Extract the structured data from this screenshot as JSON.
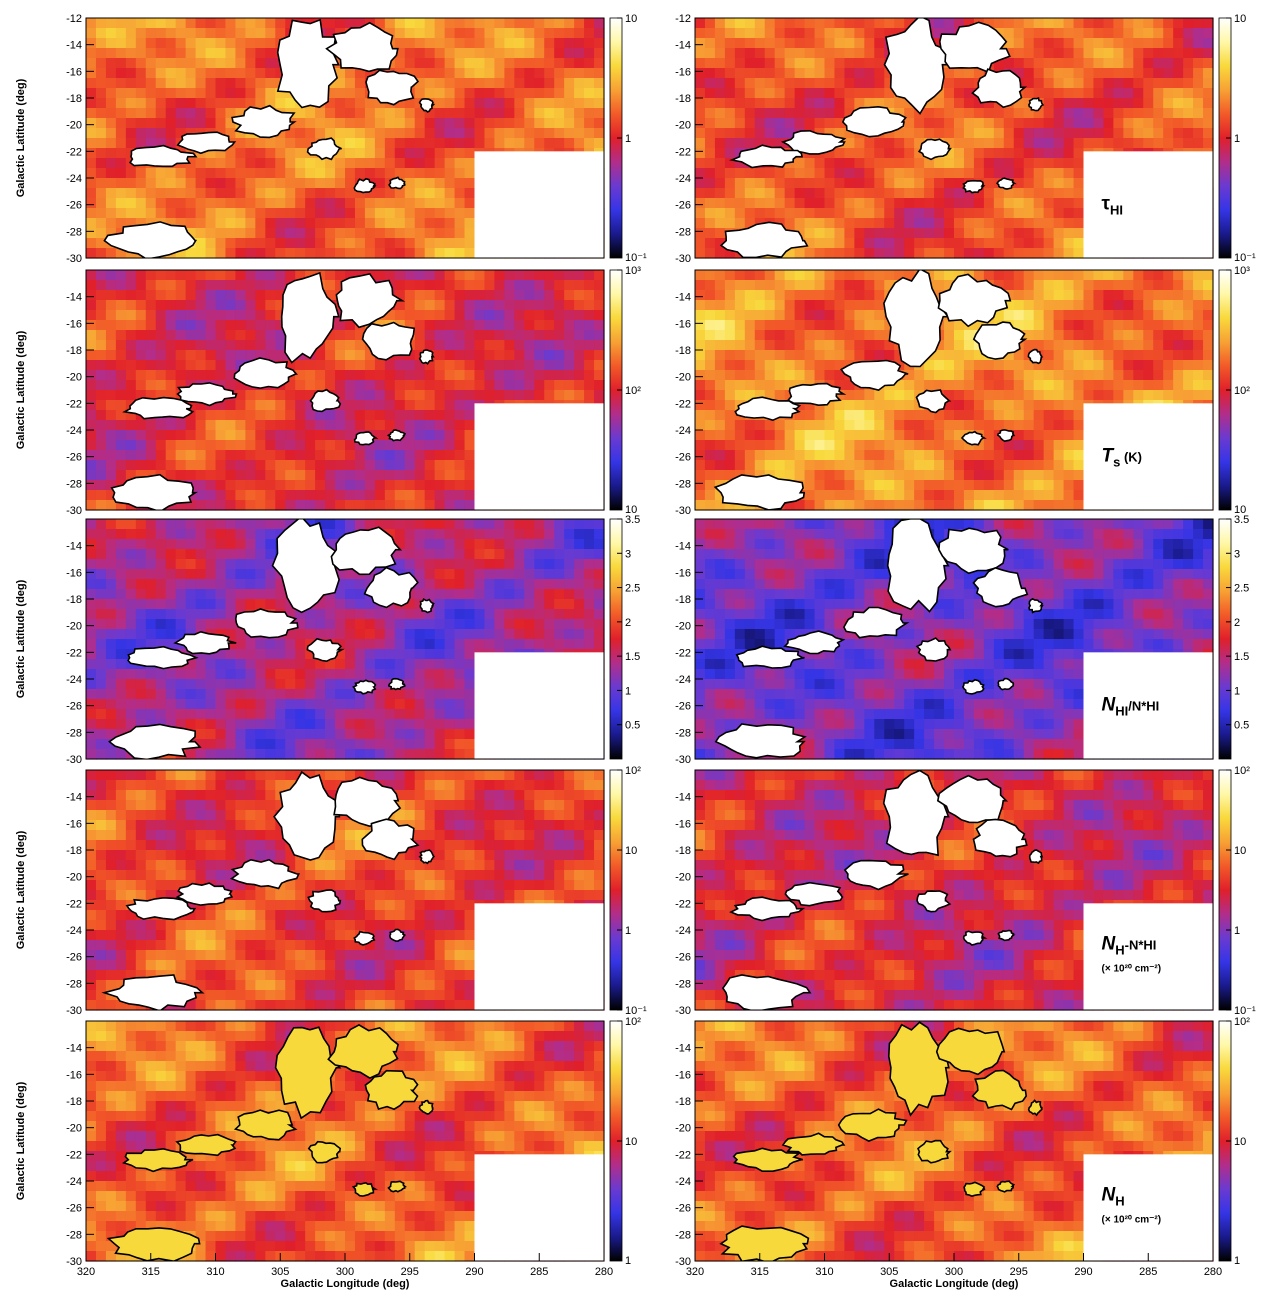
{
  "axes": {
    "xlabel": "Galactic Longitude (deg)",
    "ylabel": "Galactic Latitude (deg)",
    "x_ticks": [
      "320",
      "315",
      "310",
      "305",
      "300",
      "295",
      "290",
      "285",
      "280"
    ],
    "y_ticks": [
      "-12",
      "-14",
      "-16",
      "-18",
      "-20",
      "-22",
      "-24",
      "-26",
      "-28",
      "-30"
    ]
  },
  "chart_data": [
    {
      "type": "heatmap",
      "row": 0,
      "column": "left",
      "xlim": [
        320,
        280
      ],
      "ylim": [
        -30,
        -12
      ],
      "log_scale": true,
      "colorbar": {
        "range": [
          0.02,
          10
        ],
        "ticks": [
          "10",
          "1",
          "10⁻¹"
        ]
      },
      "label": {
        "main": "",
        "sub": "",
        "extra": ""
      }
    },
    {
      "type": "heatmap",
      "row": 0,
      "column": "right",
      "xlim": [
        320,
        280
      ],
      "ylim": [
        -30,
        -12
      ],
      "log_scale": true,
      "colorbar": {
        "range": [
          0.02,
          10
        ],
        "ticks": [
          "10",
          "1",
          "10⁻¹"
        ]
      },
      "label": {
        "main": "τ",
        "sub": "HI",
        "extra": ""
      }
    },
    {
      "type": "heatmap",
      "row": 1,
      "column": "left",
      "xlim": [
        320,
        280
      ],
      "ylim": [
        -30,
        -12
      ],
      "log_scale": true,
      "colorbar": {
        "range": [
          10,
          1000
        ],
        "ticks": [
          "10³",
          "10²",
          "10"
        ]
      },
      "label": {
        "main": "",
        "sub": "",
        "extra": ""
      }
    },
    {
      "type": "heatmap",
      "row": 1,
      "column": "right",
      "xlim": [
        320,
        280
      ],
      "ylim": [
        -30,
        -12
      ],
      "log_scale": true,
      "colorbar": {
        "range": [
          10,
          1000
        ],
        "ticks": [
          "10³",
          "10²",
          "10"
        ]
      },
      "label": {
        "main": "T",
        "sub": "s",
        "extra": " (K)"
      }
    },
    {
      "type": "heatmap",
      "row": 2,
      "column": "left",
      "xlim": [
        320,
        280
      ],
      "ylim": [
        -30,
        -12
      ],
      "log_scale": false,
      "colorbar": {
        "range": [
          0.0,
          3.5
        ],
        "ticks": [
          "3.5",
          "3",
          "2.5",
          "2",
          "1.5",
          "1",
          "0.5"
        ]
      },
      "label": {
        "main": "",
        "sub": "",
        "extra": ""
      }
    },
    {
      "type": "heatmap",
      "row": 2,
      "column": "right",
      "xlim": [
        320,
        280
      ],
      "ylim": [
        -30,
        -12
      ],
      "log_scale": false,
      "colorbar": {
        "range": [
          0.0,
          3.5
        ],
        "ticks": [
          "3.5",
          "3",
          "2.5",
          "2",
          "1.5",
          "1",
          "0.5"
        ]
      },
      "label": {
        "main": "N",
        "sub": "HI",
        "extra": "/N*HI"
      }
    },
    {
      "type": "heatmap",
      "row": 3,
      "column": "left",
      "xlim": [
        320,
        280
      ],
      "ylim": [
        -30,
        -12
      ],
      "log_scale": true,
      "colorbar": {
        "range": [
          0.1,
          100
        ],
        "ticks": [
          "10²",
          "10",
          "1",
          "10⁻¹"
        ]
      },
      "label": {
        "main": "",
        "sub": "",
        "extra": ""
      }
    },
    {
      "type": "heatmap",
      "row": 3,
      "column": "right",
      "xlim": [
        320,
        280
      ],
      "ylim": [
        -30,
        -12
      ],
      "log_scale": true,
      "colorbar": {
        "range": [
          0.1,
          100
        ],
        "ticks": [
          "10²",
          "10",
          "1",
          "10⁻¹"
        ]
      },
      "label": {
        "main": "N",
        "sub": "H",
        "extra": "-N*HI",
        "unit": "(× 10²⁰ cm⁻²)"
      }
    },
    {
      "type": "heatmap",
      "row": 4,
      "column": "left",
      "xlim": [
        320,
        280
      ],
      "ylim": [
        -30,
        -12
      ],
      "log_scale": true,
      "colorbar": {
        "range": [
          1,
          100
        ],
        "ticks": [
          "10²",
          "10",
          "1"
        ]
      },
      "label": {
        "main": "",
        "sub": "",
        "extra": ""
      }
    },
    {
      "type": "heatmap",
      "row": 4,
      "column": "right",
      "xlim": [
        320,
        280
      ],
      "ylim": [
        -30,
        -12
      ],
      "log_scale": true,
      "colorbar": {
        "range": [
          1,
          100
        ],
        "ticks": [
          "10²",
          "10",
          "1"
        ]
      },
      "label": {
        "main": "N",
        "sub": "H",
        "extra": "",
        "unit": "(× 10²⁰ cm⁻²)"
      }
    }
  ],
  "colors": {
    "colormap": [
      "#000000",
      "#1a1a8c",
      "#3535e6",
      "#6a3ad0",
      "#b22d8a",
      "#e0202a",
      "#f25a28",
      "#f7a134",
      "#f8d93c",
      "#fff8a8",
      "#ffffff"
    ],
    "mask": "#ffffff",
    "contour": "#000000",
    "frame": "#000000"
  }
}
